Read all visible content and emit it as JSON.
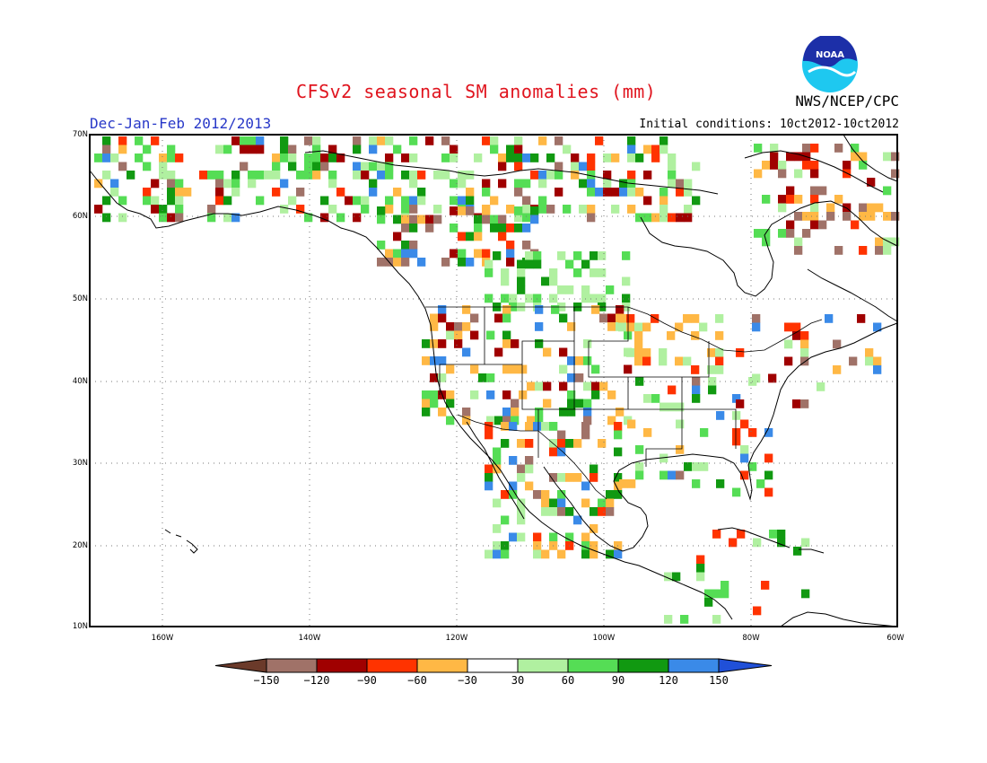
{
  "title": "CFSv2 seasonal SM anomalies (mm)",
  "period": "Dec-Jan-Feb 2012/2013",
  "initial_conditions": "Initial conditions: 10ct2012-10ct2012",
  "agency": "NWS/NCEP/CPC",
  "logo_text": "NOAA",
  "map": {
    "lon_range": [
      -172,
      -60
    ],
    "lat_range": [
      10,
      70
    ],
    "lat_ticks": [
      "70N",
      "60N",
      "50N",
      "40N",
      "30N",
      "20N",
      "10N"
    ],
    "lon_ticks": [
      "160W",
      "140W",
      "120W",
      "100W",
      "80W",
      "60W"
    ],
    "gridlines": true
  },
  "legend": {
    "labels": [
      "−150",
      "−120",
      "−90",
      "−60",
      "−30",
      "30",
      "60",
      "90",
      "120",
      "150"
    ],
    "colors": [
      "#6b3a2a",
      "#a07268",
      "#a00000",
      "#ff3300",
      "#ffb845",
      "#ffffff",
      "#b0f0a0",
      "#55dd55",
      "#119911",
      "#3a8ae8",
      "#2050d8"
    ]
  }
}
